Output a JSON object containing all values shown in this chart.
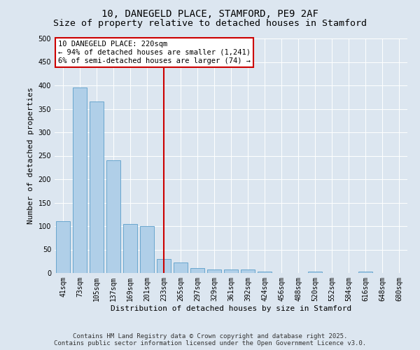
{
  "title_line1": "10, DANEGELD PLACE, STAMFORD, PE9 2AF",
  "title_line2": "Size of property relative to detached houses in Stamford",
  "xlabel": "Distribution of detached houses by size in Stamford",
  "ylabel": "Number of detached properties",
  "categories": [
    "41sqm",
    "73sqm",
    "105sqm",
    "137sqm",
    "169sqm",
    "201sqm",
    "233sqm",
    "265sqm",
    "297sqm",
    "329sqm",
    "361sqm",
    "392sqm",
    "424sqm",
    "456sqm",
    "488sqm",
    "520sqm",
    "552sqm",
    "584sqm",
    "616sqm",
    "648sqm",
    "680sqm"
  ],
  "values": [
    110,
    395,
    365,
    240,
    105,
    100,
    30,
    22,
    10,
    8,
    8,
    8,
    3,
    0,
    0,
    3,
    0,
    0,
    3,
    0,
    0
  ],
  "bar_color": "#b0cfe8",
  "bar_edge_color": "#5a9ec9",
  "vline_x_index": 6,
  "vline_color": "#cc0000",
  "annotation_text": "10 DANEGELD PLACE: 220sqm\n← 94% of detached houses are smaller (1,241)\n6% of semi-detached houses are larger (74) →",
  "annotation_box_facecolor": "#ffffff",
  "annotation_box_edgecolor": "#cc0000",
  "ylim_max": 500,
  "yticks": [
    0,
    50,
    100,
    150,
    200,
    250,
    300,
    350,
    400,
    450,
    500
  ],
  "background_color": "#dce6f0",
  "grid_color": "#ffffff",
  "footer_line1": "Contains HM Land Registry data © Crown copyright and database right 2025.",
  "footer_line2": "Contains public sector information licensed under the Open Government Licence v3.0.",
  "title_fontsize": 10,
  "subtitle_fontsize": 9.5,
  "axis_label_fontsize": 8,
  "tick_fontsize": 7,
  "annotation_fontsize": 7.5,
  "footer_fontsize": 6.5
}
